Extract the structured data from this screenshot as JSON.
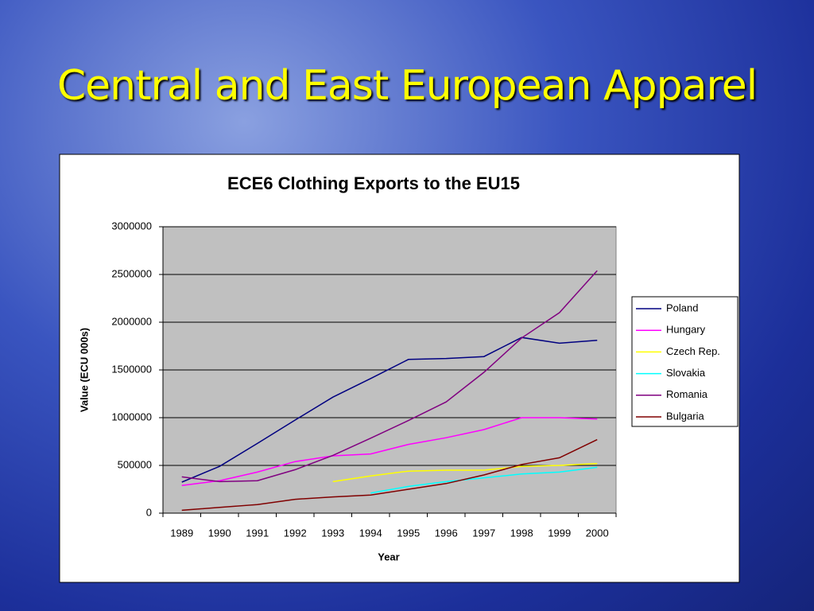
{
  "slide": {
    "title": "Central and East European Apparel"
  },
  "chart_data": {
    "type": "line",
    "title": "ECE6 Clothing Exports to the EU15",
    "x_label": "Year",
    "y_label": "Value (ECU 000s)",
    "categories": [
      "1989",
      "1990",
      "1991",
      "1992",
      "1993",
      "1994",
      "1995",
      "1996",
      "1997",
      "1998",
      "1999",
      "2000"
    ],
    "series": [
      {
        "name": "Poland",
        "color": "#000080",
        "values": [
          325000,
          490000,
          730000,
          975000,
          1215000,
          1410000,
          1610000,
          1620000,
          1640000,
          1840000,
          1780000,
          1810000
        ]
      },
      {
        "name": "Hungary",
        "color": "#ff00ff",
        "values": [
          290000,
          340000,
          430000,
          540000,
          600000,
          620000,
          720000,
          790000,
          875000,
          1000000,
          1000000,
          985000
        ]
      },
      {
        "name": "Czech Rep.",
        "color": "#ffff00",
        "values": [
          null,
          null,
          null,
          null,
          330000,
          390000,
          440000,
          450000,
          450000,
          490000,
          500000,
          520000
        ]
      },
      {
        "name": "Slovakia",
        "color": "#00ffff",
        "values": [
          null,
          null,
          null,
          null,
          null,
          210000,
          280000,
          330000,
          370000,
          410000,
          430000,
          480000
        ]
      },
      {
        "name": "Romania",
        "color": "#800080",
        "values": [
          380000,
          330000,
          340000,
          455000,
          605000,
          785000,
          970000,
          1165000,
          1475000,
          1835000,
          2100000,
          2540000
        ]
      },
      {
        "name": "Bulgaria",
        "color": "#800000",
        "values": [
          30000,
          60000,
          90000,
          145000,
          170000,
          190000,
          250000,
          310000,
          400000,
          510000,
          580000,
          770000
        ]
      }
    ],
    "ylim": [
      0,
      3000000
    ],
    "yticks": [
      0,
      500000,
      1000000,
      1500000,
      2000000,
      2500000,
      3000000
    ],
    "grid": true,
    "legend": "right"
  }
}
